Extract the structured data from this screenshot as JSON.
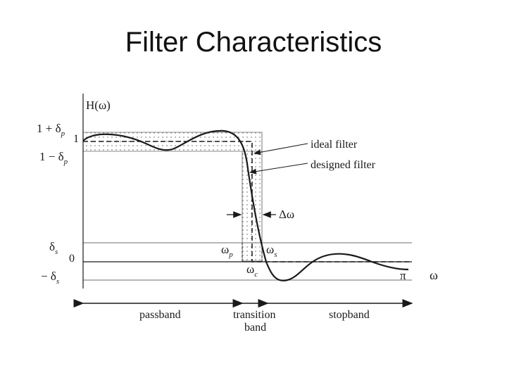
{
  "slide": {
    "title": "Filter Characteristics"
  },
  "diagram": {
    "y_axis": "H(ω)",
    "x_axis": "ω",
    "pi": "π",
    "levels": {
      "upper_pass": {
        "main": "1 + δ",
        "sub": "p"
      },
      "one": "1",
      "lower_pass": {
        "main": "1 − δ",
        "sub": "p"
      },
      "stop": {
        "main": "δ",
        "sub": "s"
      },
      "zero": "0",
      "neg_stop": {
        "main": "− δ",
        "sub": "s"
      }
    },
    "freqs": {
      "wp": {
        "main": "ω",
        "sub": "p"
      },
      "ws": {
        "main": "ω",
        "sub": "s"
      },
      "wc": {
        "main": "ω",
        "sub": "c"
      }
    },
    "delta_w": "Δω",
    "annotations": {
      "ideal": "ideal filter",
      "designed": "designed filter"
    },
    "bands": {
      "pass": "passband",
      "transition_1": "transition",
      "transition_2": "band",
      "stop": "stopband"
    }
  },
  "colors": {
    "ink": "#1a1a1a",
    "level_line": "#8a8a8a",
    "dots": "#555555"
  }
}
